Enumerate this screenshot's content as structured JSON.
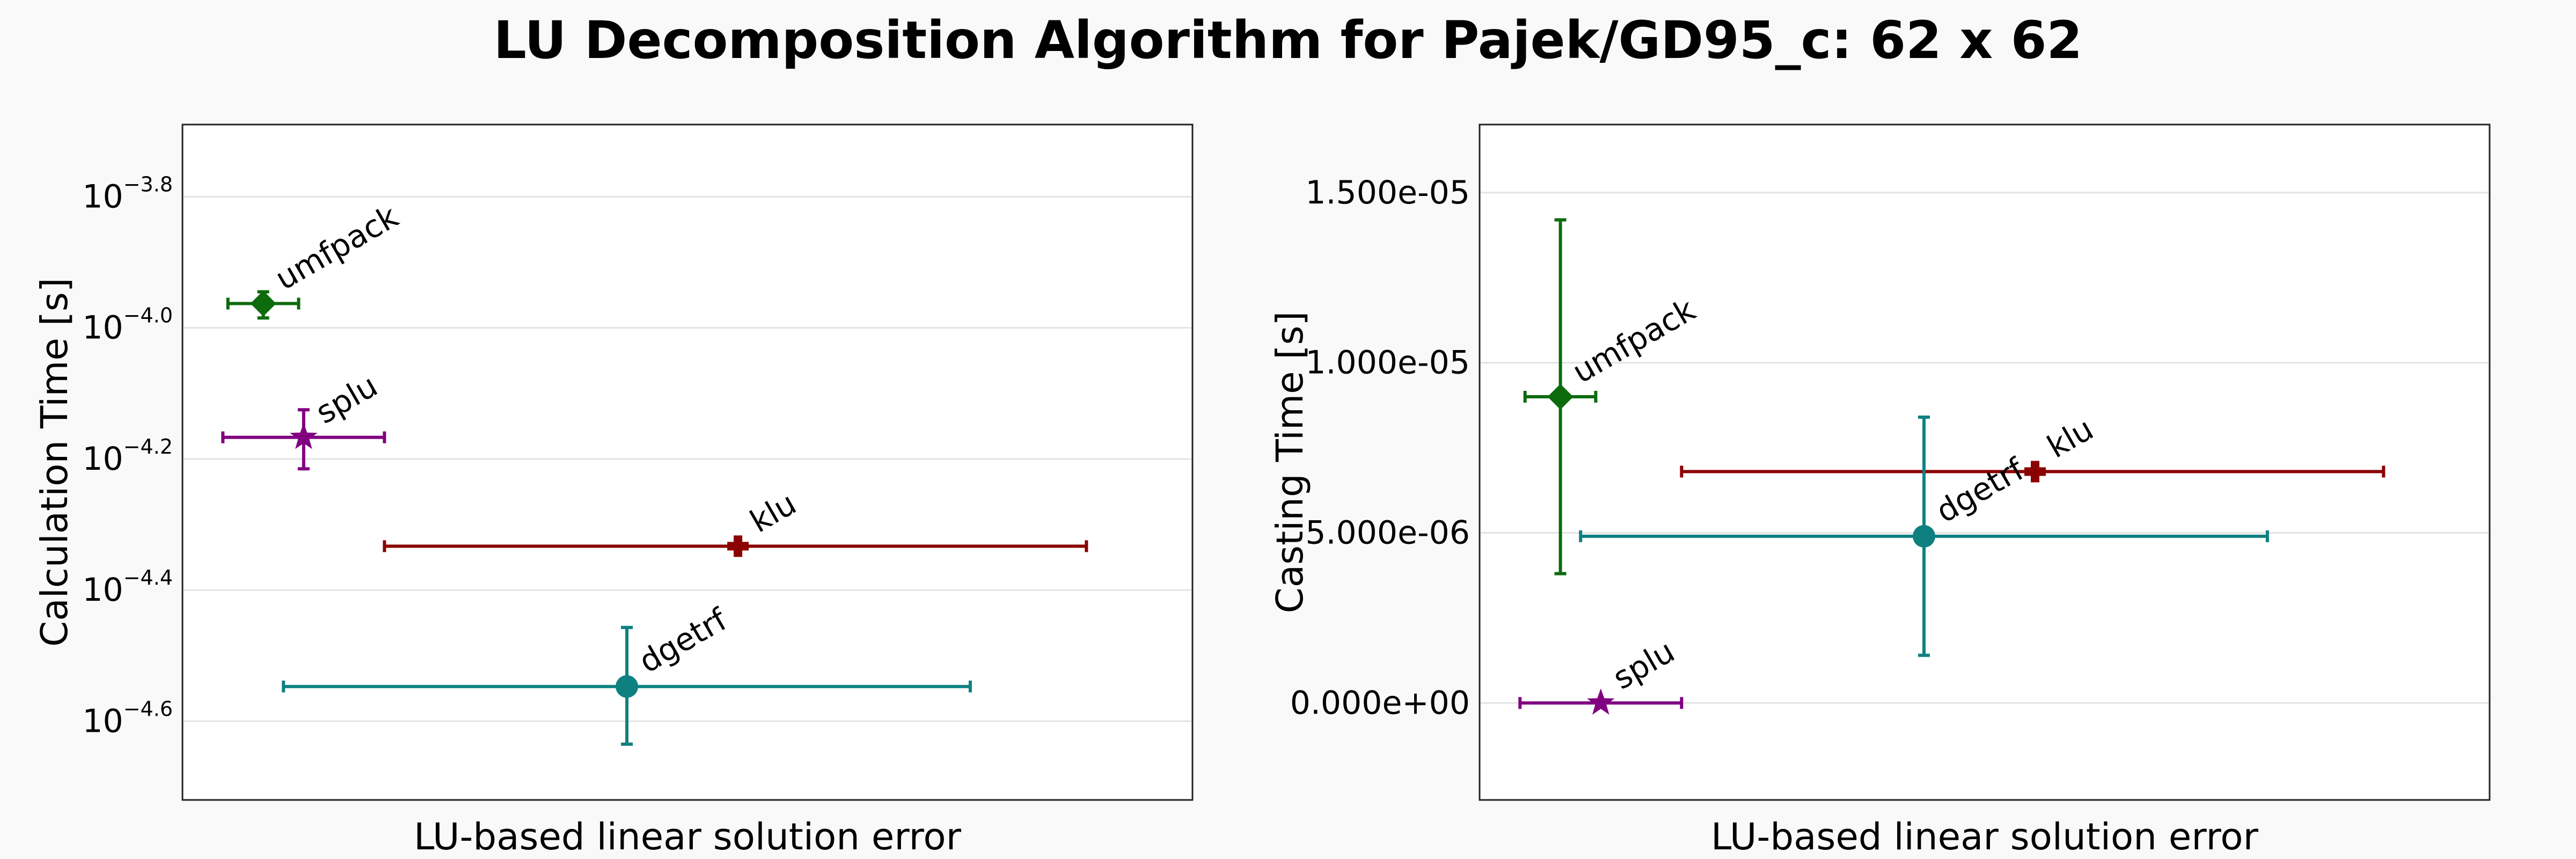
{
  "figure": {
    "title": "LU Decomposition Algorithm for Pajek/GD95_c: 62 x 62"
  },
  "chart_data": [
    {
      "type": "scatter",
      "panel": "left",
      "xlabel": "LU-based linear solution error",
      "ylabel": "Calculation Time [s]",
      "yscale": "log",
      "ylim_log10": [
        -4.72,
        -3.69
      ],
      "xlim": [
        0,
        1
      ],
      "x_ticks_shown": false,
      "grid": true,
      "yticks": [
        {
          "exp": -3.8,
          "base": "10",
          "sup": "−3.8"
        },
        {
          "exp": -4.0,
          "base": "10",
          "sup": "−4.0"
        },
        {
          "exp": -4.2,
          "base": "10",
          "sup": "−4.2"
        },
        {
          "exp": -4.4,
          "base": "10",
          "sup": "−4.4"
        },
        {
          "exp": -4.6,
          "base": "10",
          "sup": "−4.6"
        }
      ],
      "points": [
        {
          "label": "umfpack",
          "marker": "diamond",
          "color": "#0d6b0d",
          "x": 0.08,
          "x_err": [
            0.045,
            0.115
          ],
          "y_log10": -3.963,
          "y_err_log10": [
            -3.985,
            -3.945
          ]
        },
        {
          "label": "splu",
          "marker": "star",
          "color": "#800080",
          "x": 0.12,
          "x_err": [
            0.04,
            0.2
          ],
          "y_log10": -4.167,
          "y_err_log10": [
            -4.215,
            -4.125
          ]
        },
        {
          "label": "klu",
          "marker": "plus",
          "color": "#8b0000",
          "x": 0.55,
          "x_err": [
            0.2,
            0.895
          ],
          "y_log10": -4.333,
          "y_err_log10": [
            -4.333,
            -4.333
          ]
        },
        {
          "label": "dgetrf",
          "marker": "circle",
          "color": "#0f8080",
          "x": 0.44,
          "x_err": [
            0.1,
            0.78
          ],
          "y_log10": -4.547,
          "y_err_log10": [
            -4.635,
            -4.457
          ]
        }
      ]
    },
    {
      "type": "scatter",
      "panel": "right",
      "xlabel": "LU-based linear solution error",
      "ylabel": "Casting Time [s]",
      "yscale": "linear",
      "ylim": [
        -2.85e-06,
        1.7e-05
      ],
      "xlim": [
        0,
        1
      ],
      "x_ticks_shown": false,
      "grid": true,
      "yticks": [
        {
          "value": 1.5e-05,
          "label": "1.500e-05"
        },
        {
          "value": 1e-05,
          "label": "1.000e-05"
        },
        {
          "value": 5e-06,
          "label": "5.000e-06"
        },
        {
          "value": 0.0,
          "label": "0.000e+00"
        }
      ],
      "points": [
        {
          "label": "umfpack",
          "marker": "diamond",
          "color": "#0d6b0d",
          "x": 0.08,
          "x_err": [
            0.045,
            0.115
          ],
          "y": 9e-06,
          "y_err": [
            3.8e-06,
            1.42e-05
          ]
        },
        {
          "label": "klu",
          "marker": "plus",
          "color": "#8b0000",
          "x": 0.55,
          "x_err": [
            0.2,
            0.895
          ],
          "y": 6.8e-06,
          "y_err": [
            6.8e-06,
            6.8e-06
          ]
        },
        {
          "label": "dgetrf",
          "marker": "circle",
          "color": "#0f8080",
          "x": 0.44,
          "x_err": [
            0.1,
            0.78
          ],
          "y": 4.9e-06,
          "y_err": [
            1.4e-06,
            8.4e-06
          ]
        },
        {
          "label": "splu",
          "marker": "star",
          "color": "#800080",
          "x": 0.12,
          "x_err": [
            0.04,
            0.2
          ],
          "y": 0.0,
          "y_err": [
            0.0,
            0.0
          ]
        }
      ]
    }
  ]
}
